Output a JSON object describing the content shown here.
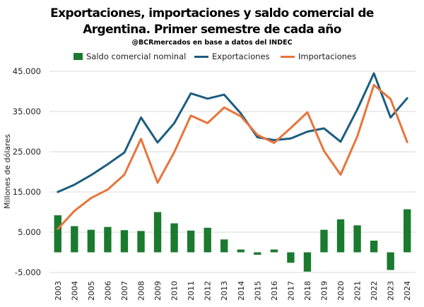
{
  "chart_data": {
    "type": "bar+line",
    "title_line1": "Exportaciones, importaciones y saldo comercial de",
    "title_line2": "Argentina. Primer semestre de cada año",
    "subtitle": "@BCRmercados en base a datos del INDEC",
    "ylabel": "Millones de dólares",
    "ylim": [
      -5000,
      45000
    ],
    "yticks": [
      -5000,
      5000,
      15000,
      25000,
      35000,
      45000
    ],
    "ytick_labels": [
      "-5.000",
      "5.000",
      "15.000",
      "25.000",
      "35.000",
      "45.000"
    ],
    "categories": [
      "2003",
      "2004",
      "2005",
      "2006",
      "2007",
      "2008",
      "2009",
      "2010",
      "2011",
      "2012",
      "2013",
      "2014",
      "2015",
      "2016",
      "2017",
      "2018",
      "2019",
      "2020",
      "2021",
      "2022",
      "2023",
      "2024"
    ],
    "legend_position": "top",
    "grid": "horizontal",
    "series": [
      {
        "name": "Saldo comercial nominal",
        "kind": "bar",
        "color": "#1a7a2e",
        "values": [
          9200,
          6500,
          5600,
          6300,
          5500,
          5300,
          10000,
          7200,
          5400,
          6100,
          3200,
          700,
          -600,
          700,
          -2600,
          -4800,
          5600,
          8200,
          6700,
          2900,
          -4400,
          10700
        ]
      },
      {
        "name": "Exportaciones",
        "kind": "line",
        "color": "#1d5d7e",
        "values": [
          15000,
          16800,
          19200,
          21900,
          24800,
          33500,
          27300,
          32100,
          39500,
          38200,
          39200,
          34500,
          28600,
          27900,
          28300,
          30000,
          30800,
          27500,
          35500,
          44500,
          33500,
          38300
        ]
      },
      {
        "name": "Importaciones",
        "kind": "line",
        "color": "#e8743b",
        "values": [
          5800,
          10300,
          13500,
          15600,
          19300,
          28200,
          17300,
          24900,
          34000,
          32100,
          36000,
          33800,
          29200,
          27200,
          30900,
          34800,
          25200,
          19300,
          28800,
          41600,
          38100,
          27400
        ]
      }
    ]
  }
}
